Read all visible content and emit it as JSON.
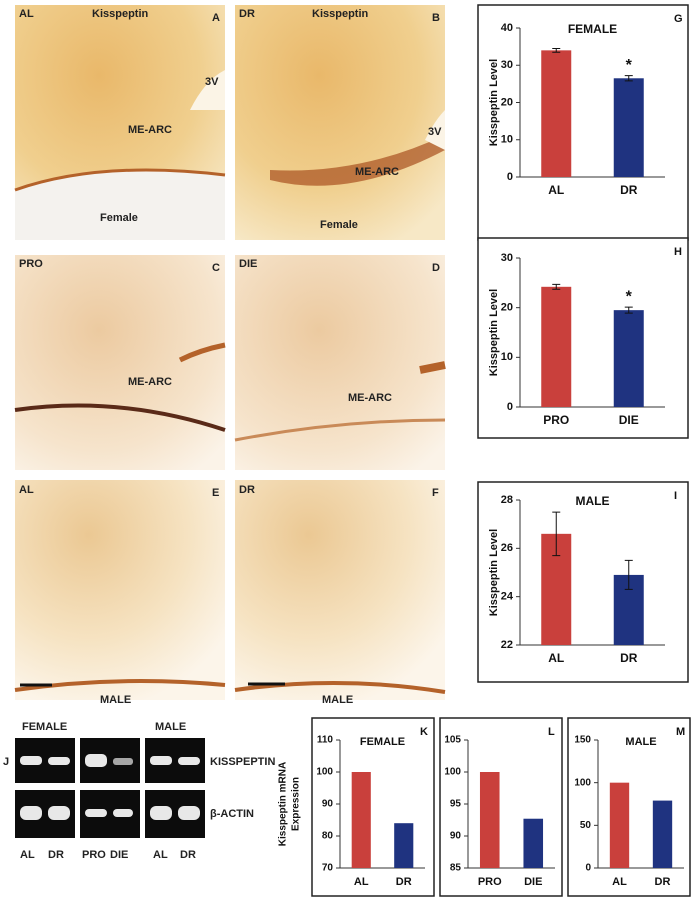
{
  "panels": [
    {
      "group": "AL",
      "stain": "Kisspeptin",
      "letter": "A",
      "ventricle": "3V",
      "region": "ME-ARC",
      "sex": "Female"
    },
    {
      "group": "DR",
      "stain": "Kisspeptin",
      "letter": "B",
      "ventricle": "3V",
      "region": "ME-ARC",
      "sex": "Female"
    },
    {
      "group": "PRO",
      "letter": "C",
      "region": "ME-ARC"
    },
    {
      "group": "DIE",
      "letter": "D",
      "region": "ME-ARC"
    },
    {
      "group": "AL",
      "letter": "E",
      "sex": "MALE"
    },
    {
      "group": "DR",
      "letter": "F",
      "sex": "MALE"
    }
  ],
  "gel": {
    "letter": "J",
    "sexes": [
      "FEMALE",
      "MALE"
    ],
    "genes": [
      "KISSPEPTIN",
      "β-ACTIN"
    ],
    "lanes": [
      "AL",
      "DR",
      "PRO",
      "DIE",
      "AL",
      "DR"
    ]
  },
  "chart_data": [
    {
      "type": "bar",
      "panel": "G",
      "title": "FEMALE",
      "ylabel": "Kisspeptin Level",
      "categories": [
        "AL",
        "DR"
      ],
      "values": [
        34,
        26.5
      ],
      "errors": [
        0.5,
        0.7
      ],
      "colors": [
        "#c9403c",
        "#1f3380"
      ],
      "significant": [
        false,
        true
      ],
      "annotation": "*",
      "ylim": [
        0,
        40
      ],
      "yticks": [
        0,
        10,
        20,
        30,
        40
      ]
    },
    {
      "type": "bar",
      "panel": "H",
      "ylabel": "Kisspeptin Level",
      "categories": [
        "PRO",
        "DIE"
      ],
      "values": [
        24.2,
        19.5
      ],
      "errors": [
        0.5,
        0.6
      ],
      "colors": [
        "#c9403c",
        "#1f3380"
      ],
      "significant": [
        false,
        true
      ],
      "annotation": "*",
      "ylim": [
        0,
        30
      ],
      "yticks": [
        0,
        10,
        20,
        30
      ]
    },
    {
      "type": "bar",
      "panel": "I",
      "title": "MALE",
      "ylabel": "Kisspeptin Level",
      "categories": [
        "AL",
        "DR"
      ],
      "values": [
        26.6,
        24.9
      ],
      "errors": [
        0.9,
        0.6
      ],
      "colors": [
        "#c9403c",
        "#1f3380"
      ],
      "ylim": [
        22,
        28
      ],
      "yticks": [
        22,
        24,
        26,
        28
      ]
    },
    {
      "type": "bar",
      "panel": "K",
      "title": "FEMALE",
      "ylabel": [
        "Kisspeptin mRNA",
        "Expression"
      ],
      "categories": [
        "AL",
        "DR"
      ],
      "values": [
        100,
        84
      ],
      "colors": [
        "#c9403c",
        "#1f3380"
      ],
      "ylim": [
        70,
        110
      ],
      "yticks": [
        70,
        80,
        90,
        100,
        110
      ]
    },
    {
      "type": "bar",
      "panel": "L",
      "categories": [
        "PRO",
        "DIE"
      ],
      "values": [
        100,
        92.7
      ],
      "colors": [
        "#c9403c",
        "#1f3380"
      ],
      "ylim": [
        85,
        105
      ],
      "yticks": [
        85,
        90,
        95,
        100,
        105
      ]
    },
    {
      "type": "bar",
      "panel": "M",
      "title": "MALE",
      "categories": [
        "AL",
        "DR"
      ],
      "values": [
        100,
        79
      ],
      "colors": [
        "#c9403c",
        "#1f3380"
      ],
      "ylim": [
        0,
        150
      ],
      "yticks": [
        0,
        50,
        100,
        150
      ]
    }
  ]
}
